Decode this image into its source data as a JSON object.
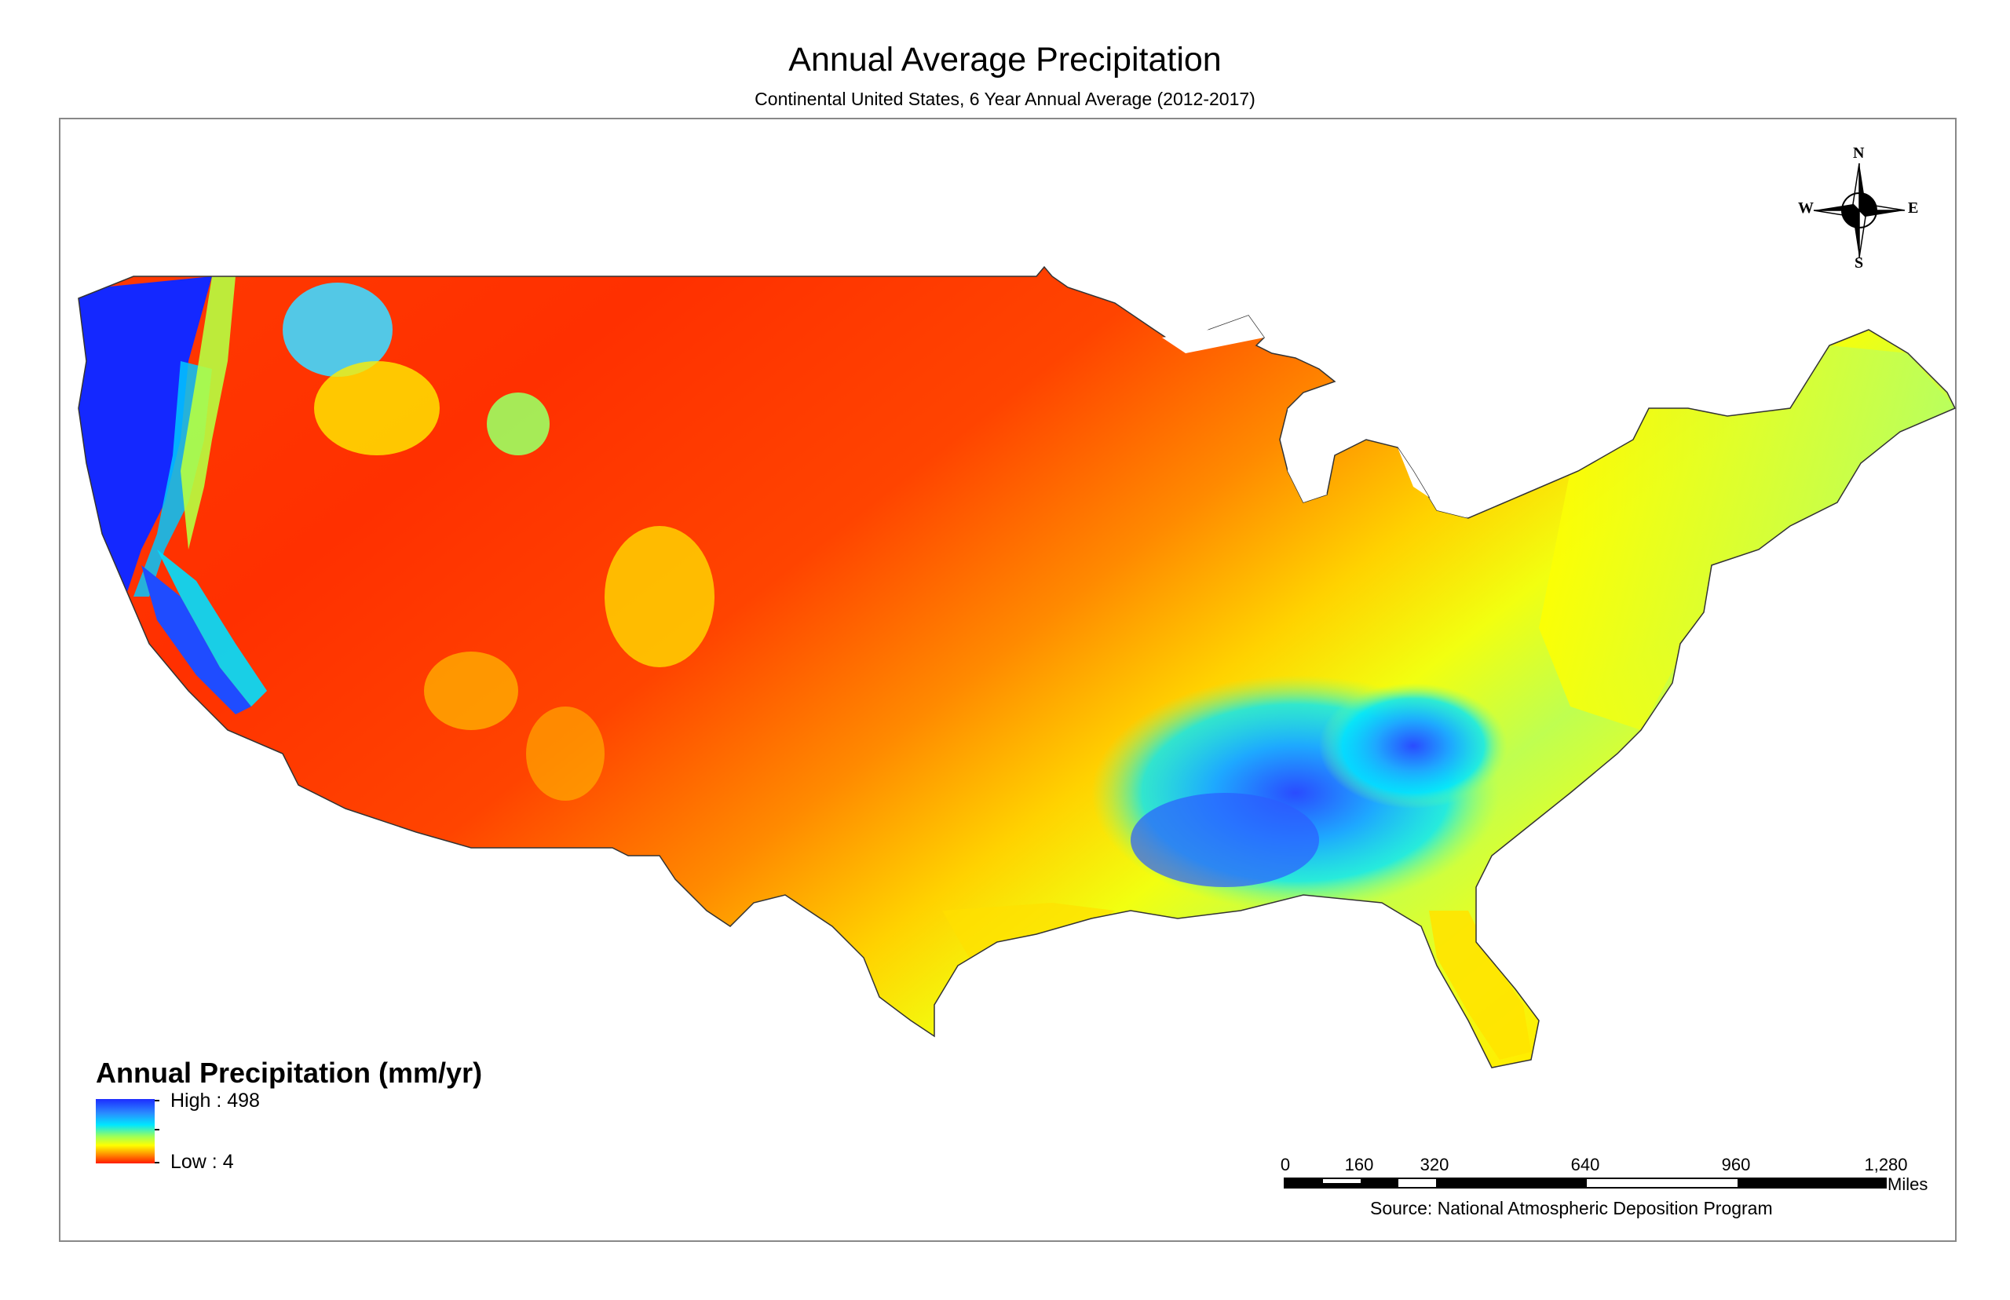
{
  "map": {
    "title": "Annual Average Precipitation",
    "subtitle": "Continental United States, 6 Year Annual Average (2012-2017)",
    "region": "Continental United States"
  },
  "legend": {
    "title": "Annual Precipitation (mm/yr)",
    "high_label": "High : 498",
    "low_label": "Low : 4",
    "high_value": 498,
    "low_value": 4,
    "colors": [
      "#1d2cff",
      "#2a8cff",
      "#00e6ff",
      "#9cff5a",
      "#ffff00",
      "#ff9000",
      "#ff1a00"
    ]
  },
  "scale": {
    "labels": [
      "0",
      "160",
      "320",
      "640",
      "960",
      "1,280"
    ],
    "units": "Miles"
  },
  "compass": {
    "north": "N",
    "south": "S",
    "east": "E",
    "west": "W"
  },
  "source": "Source: National Atmospheric Deposition Program"
}
